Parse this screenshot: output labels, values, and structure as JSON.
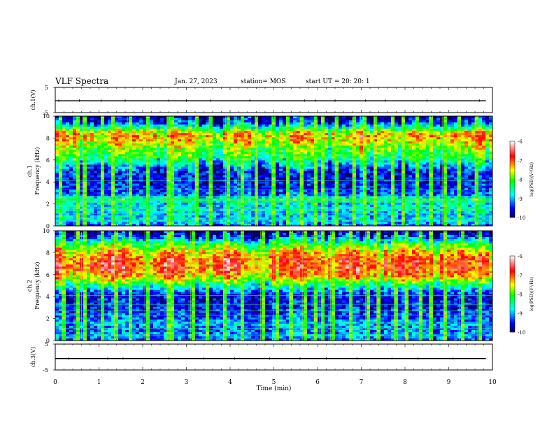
{
  "header": {
    "title": "VLF Spectra",
    "date": "Jan. 27, 2023",
    "station": "station= MOS",
    "start": "start UT =   20: 20: 1"
  },
  "chart_data": [
    {
      "type": "line",
      "name": "ch1-waveform",
      "ylabel": "ch.1(V)",
      "ylim": [
        -5,
        5
      ],
      "yticks": [
        "5",
        "-5"
      ],
      "xlim": [
        0,
        10
      ],
      "baseline": -0.3,
      "x": [
        0,
        1,
        2,
        3,
        4,
        5,
        6,
        7,
        8,
        9,
        9.85
      ],
      "values": [
        -0.3,
        -0.3,
        -0.3,
        -0.3,
        -0.3,
        -0.3,
        -0.3,
        -0.3,
        -0.3,
        -0.3,
        -0.3
      ],
      "spikes": [
        0.08,
        0.55,
        1.05,
        1.6,
        2.6,
        3.0,
        3.55,
        4.45,
        5.7,
        5.95,
        6.4,
        7.1,
        7.55,
        8.5,
        9.7
      ]
    },
    {
      "type": "heatmap",
      "name": "ch1-spectrogram",
      "ylabel": "ch.1\nFrequency (kHz)",
      "ylabel_lines": [
        "ch.1",
        "Frequency (kHz)"
      ],
      "xlim": [
        0,
        10
      ],
      "ylim": [
        0,
        10
      ],
      "yticks": [
        "0",
        "2",
        "4",
        "6",
        "8",
        "10"
      ],
      "colorbar": {
        "label": "log(PSD)(V²/Hz)",
        "min": -10,
        "max": -6,
        "ticks": [
          "-6",
          "-7",
          "-8",
          "-9",
          "-10"
        ]
      },
      "band_profile_log_psd": [
        [
          0,
          -9.3
        ],
        [
          0.5,
          -8.8
        ],
        [
          1,
          -9.0
        ],
        [
          1.5,
          -8.7
        ],
        [
          2,
          -8.9
        ],
        [
          2.4,
          -8.2
        ],
        [
          2.8,
          -9.3
        ],
        [
          3.2,
          -9.4
        ],
        [
          4,
          -9.6
        ],
        [
          5,
          -9.5
        ],
        [
          5.6,
          -9.0
        ],
        [
          6.2,
          -8.3
        ],
        [
          7,
          -8.0
        ],
        [
          7.6,
          -7.6
        ],
        [
          8.2,
          -7.3
        ],
        [
          8.6,
          -7.6
        ],
        [
          9.0,
          -8.6
        ],
        [
          9.4,
          -9.5
        ],
        [
          10,
          -9.9
        ]
      ],
      "vertical_events_min": [
        0.1,
        0.5,
        0.62,
        1.05,
        1.3,
        1.65,
        2.1,
        2.55,
        2.62,
        3.2,
        3.5,
        3.9,
        4.2,
        4.6,
        4.95,
        5.3,
        5.6,
        5.95,
        6.1,
        6.4,
        6.8,
        7.05,
        7.3,
        7.7,
        7.95,
        8.25,
        8.55,
        8.85,
        9.2,
        9.6
      ]
    },
    {
      "type": "heatmap",
      "name": "ch2-spectrogram",
      "ylabel": "ch.2\nFrequency (kHz)",
      "ylabel_lines": [
        "ch.2",
        "Frequency (kHz)"
      ],
      "xlim": [
        0,
        10
      ],
      "ylim": [
        0,
        10
      ],
      "yticks": [
        "0",
        "2",
        "4",
        "6",
        "8",
        "10"
      ],
      "colorbar": {
        "label": "log(PSD)(V²/Hz)",
        "min": -10,
        "max": -6,
        "ticks": [
          "-6",
          "-7",
          "-8",
          "-9",
          "-10"
        ]
      },
      "band_profile_log_psd": [
        [
          0,
          -9.4
        ],
        [
          0.5,
          -9.0
        ],
        [
          1,
          -9.3
        ],
        [
          1.5,
          -9.0
        ],
        [
          2,
          -9.3
        ],
        [
          2.5,
          -9.4
        ],
        [
          3,
          -9.5
        ],
        [
          4,
          -9.6
        ],
        [
          4.6,
          -9.1
        ],
        [
          5.2,
          -8.2
        ],
        [
          5.8,
          -7.4
        ],
        [
          6.4,
          -7.0
        ],
        [
          7,
          -6.9
        ],
        [
          7.6,
          -7.1
        ],
        [
          8.2,
          -7.5
        ],
        [
          8.8,
          -8.2
        ],
        [
          9.3,
          -9.1
        ],
        [
          9.7,
          -9.7
        ],
        [
          10,
          -9.9
        ]
      ],
      "vertical_events_min": [
        0.15,
        0.45,
        0.6,
        1.0,
        1.35,
        1.7,
        2.05,
        2.55,
        2.65,
        3.1,
        3.45,
        3.85,
        4.25,
        4.7,
        5.0,
        5.35,
        5.65,
        5.9,
        6.05,
        6.3,
        6.75,
        7.1,
        7.35,
        7.75,
        8.0,
        8.3,
        8.55,
        8.9,
        9.25,
        9.65
      ]
    },
    {
      "type": "line",
      "name": "ch3-waveform",
      "ylabel": "ch.3(V)",
      "ylim": [
        -5,
        5
      ],
      "yticks": [
        "5",
        "-5"
      ],
      "xlim": [
        0,
        10
      ],
      "xlabel": "Time (min)",
      "xticks": [
        "0",
        "1",
        "2",
        "3",
        "4",
        "5",
        "6",
        "7",
        "8",
        "9",
        "10"
      ],
      "baseline": -0.6,
      "x": [
        0,
        1,
        2,
        3,
        4,
        5,
        6,
        7,
        8,
        9,
        9.85
      ],
      "values": [
        -0.6,
        -0.6,
        -0.6,
        -0.6,
        -0.6,
        -0.6,
        -0.6,
        -0.6,
        -0.6,
        -0.6,
        -0.6
      ],
      "spikes": [
        0.3,
        1.2,
        1.55,
        2.6,
        3.4,
        4.1,
        4.9,
        5.6,
        6.2,
        6.9,
        7.7,
        8.3,
        9.1
      ]
    }
  ]
}
